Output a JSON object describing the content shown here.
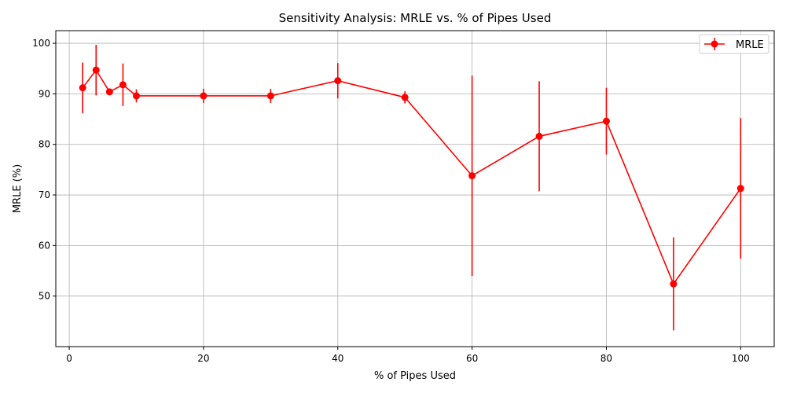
{
  "chart_data": {
    "type": "line",
    "title": "Sensitivity Analysis: MRLE vs. % of Pipes Used",
    "xlabel": "% of Pipes Used",
    "ylabel": "MRLE (%)",
    "xlim": [
      -2,
      105
    ],
    "ylim": [
      40,
      102.5
    ],
    "xticks": [
      0,
      20,
      40,
      60,
      80,
      100
    ],
    "yticks": [
      50,
      60,
      70,
      80,
      90,
      100
    ],
    "grid": true,
    "legend_position": "top-right",
    "series": [
      {
        "name": "MRLE",
        "color": "#ff0000",
        "marker": "circle",
        "x": [
          2,
          4,
          6,
          8,
          10,
          20,
          30,
          40,
          50,
          60,
          70,
          80,
          90,
          100
        ],
        "y": [
          91.2,
          94.7,
          90.4,
          91.8,
          89.6,
          89.6,
          89.6,
          92.6,
          89.3,
          73.8,
          81.6,
          84.6,
          52.4,
          71.3
        ],
        "err": [
          5.0,
          5.0,
          0.6,
          4.2,
          1.3,
          1.4,
          1.4,
          3.5,
          1.2,
          19.8,
          10.9,
          6.6,
          9.2,
          13.9
        ]
      }
    ]
  }
}
